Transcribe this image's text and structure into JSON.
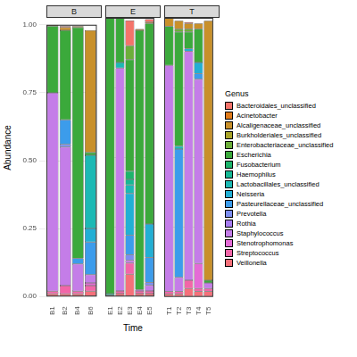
{
  "chart_data": [
    {
      "type": "bar",
      "title": "B",
      "stacked": true,
      "grid": true,
      "y_label": "Abundance",
      "categories": [
        "B1",
        "B2",
        "B4",
        "B6"
      ],
      "ylim": [
        0,
        1
      ],
      "yticks": [
        {
          "value": 0,
          "label": "0.00"
        },
        {
          "value": 0.25,
          "label": "0.25"
        },
        {
          "value": 0.5,
          "label": "0.50"
        },
        {
          "value": 0.75,
          "label": "0.75"
        },
        {
          "value": 1,
          "label": "1.00"
        }
      ],
      "series": [
        {
          "name": "Bacteroidales_unclassified",
          "color": "#f4736a",
          "values": [
            0,
            0.005,
            0,
            0
          ]
        },
        {
          "name": "Acinetobacter",
          "color": "#e07b1a",
          "values": [
            0,
            0,
            0,
            0
          ]
        },
        {
          "name": "Alcaligenaceae_unclassified",
          "color": "#c8902a",
          "values": [
            0.005,
            0.01,
            0.005,
            0.45
          ]
        },
        {
          "name": "Burkholderiales_unclassified",
          "color": "#a9a428",
          "values": [
            0,
            0,
            0,
            0
          ]
        },
        {
          "name": "Enterobacteriaceae_unclassified",
          "color": "#6dae3a",
          "values": [
            0,
            0,
            0,
            0
          ]
        },
        {
          "name": "Escherichia",
          "color": "#3ba93b",
          "values": [
            0.245,
            0.33,
            0.85,
            0.01
          ]
        },
        {
          "name": "Fusobacterium",
          "color": "#1db46b",
          "values": [
            0,
            0,
            0,
            0
          ]
        },
        {
          "name": "Haemophilus",
          "color": "#16b894",
          "values": [
            0,
            0,
            0,
            0
          ]
        },
        {
          "name": "Lactobacillales_unclassified",
          "color": "#1cb9b4",
          "values": [
            0,
            0,
            0,
            0.27
          ]
        },
        {
          "name": "Neisseria",
          "color": "#22afd4",
          "values": [
            0,
            0,
            0,
            0.05
          ]
        },
        {
          "name": "Pasteurellaceae_unclassified",
          "color": "#3c9ceb",
          "values": [
            0,
            0.09,
            0.02,
            0.12
          ]
        },
        {
          "name": "Prevotella",
          "color": "#7d8ef0",
          "values": [
            0,
            0.01,
            0,
            0
          ]
        },
        {
          "name": "Rothia",
          "color": "#a67cf0",
          "values": [
            0,
            0,
            0,
            0
          ]
        },
        {
          "name": "Staphylococcus",
          "color": "#c47de8",
          "values": [
            0.73,
            0.51,
            0.1,
            0.03
          ]
        },
        {
          "name": "Stenotrophomonas",
          "color": "#e46bd6",
          "values": [
            0,
            0,
            0,
            0.01
          ]
        },
        {
          "name": "Streptococcus",
          "color": "#f266a8",
          "values": [
            0.01,
            0.03,
            0.01,
            0.02
          ]
        },
        {
          "name": "Veillonella",
          "color": "#f5707a",
          "values": [
            0.01,
            0.01,
            0.01,
            0.02
          ]
        }
      ]
    },
    {
      "type": "bar",
      "title": "E",
      "stacked": true,
      "grid": true,
      "x_label": "Time",
      "tick_labels": "x",
      "categories": [
        "E1",
        "E2",
        "E3",
        "E4",
        "E5"
      ],
      "ylim": [
        0,
        1
      ],
      "yticks": [
        {
          "value": 0,
          "label": "0.00"
        },
        {
          "value": 0.25,
          "label": "0.25"
        },
        {
          "value": 0.5,
          "label": "0.50"
        },
        {
          "value": 0.75,
          "label": "0.75"
        },
        {
          "value": 1,
          "label": "1.00"
        }
      ],
      "series": [
        {
          "name": "Bacteroidales_unclassified",
          "color": "#f4736a",
          "values": [
            0,
            0,
            0.09,
            0,
            0.01
          ]
        },
        {
          "name": "Acinetobacter",
          "color": "#e07b1a",
          "values": [
            0,
            0,
            0,
            0,
            0
          ]
        },
        {
          "name": "Alcaligenaceae_unclassified",
          "color": "#c8902a",
          "values": [
            0,
            0,
            0,
            0.005,
            0.005
          ]
        },
        {
          "name": "Burkholderiales_unclassified",
          "color": "#a9a428",
          "values": [
            0,
            0,
            0,
            0,
            0
          ]
        },
        {
          "name": "Enterobacteriaceae_unclassified",
          "color": "#6dae3a",
          "values": [
            0,
            0,
            0.05,
            0,
            0
          ]
        },
        {
          "name": "Escherichia",
          "color": "#3ba93b",
          "values": [
            0.99,
            0.16,
            0.4,
            0.93,
            0.72
          ]
        },
        {
          "name": "Fusobacterium",
          "color": "#1db46b",
          "values": [
            0,
            0,
            0.03,
            0,
            0
          ]
        },
        {
          "name": "Haemophilus",
          "color": "#16b894",
          "values": [
            0.005,
            0,
            0.02,
            0,
            0
          ]
        },
        {
          "name": "Lactobacillales_unclassified",
          "color": "#1cb9b4",
          "values": [
            0,
            0.02,
            0.03,
            0,
            0
          ]
        },
        {
          "name": "Neisseria",
          "color": "#22afd4",
          "values": [
            0,
            0,
            0.15,
            0,
            0.12
          ]
        },
        {
          "name": "Pasteurellaceae_unclassified",
          "color": "#3c9ceb",
          "values": [
            0,
            0,
            0.07,
            0,
            0.09
          ]
        },
        {
          "name": "Prevotella",
          "color": "#7d8ef0",
          "values": [
            0,
            0,
            0.02,
            0,
            0.01
          ]
        },
        {
          "name": "Rothia",
          "color": "#a67cf0",
          "values": [
            0,
            0,
            0,
            0,
            0
          ]
        },
        {
          "name": "Staphylococcus",
          "color": "#c47de8",
          "values": [
            0,
            0.8,
            0.01,
            0.005,
            0.02
          ]
        },
        {
          "name": "Stenotrophomonas",
          "color": "#e46bd6",
          "values": [
            0,
            0,
            0,
            0,
            0
          ]
        },
        {
          "name": "Streptococcus",
          "color": "#f266a8",
          "values": [
            0,
            0.01,
            0.04,
            0.01,
            0.01
          ]
        },
        {
          "name": "Veillonella",
          "color": "#f5707a",
          "values": [
            0.005,
            0.01,
            0.08,
            0.01,
            0.01
          ]
        }
      ]
    },
    {
      "type": "bar",
      "title": "T",
      "stacked": true,
      "grid": true,
      "tick_labels": "x",
      "legend": "right",
      "legend_title": "Genus",
      "categories": [
        "T1",
        "T2",
        "T3",
        "T4",
        "T5"
      ],
      "ylim": [
        0,
        1
      ],
      "yticks": [
        {
          "value": 0,
          "label": "0.00"
        },
        {
          "value": 0.25,
          "label": "0.25"
        },
        {
          "value": 0.5,
          "label": "0.50"
        },
        {
          "value": 0.75,
          "label": "0.75"
        },
        {
          "value": 1,
          "label": "1.00"
        }
      ],
      "series": [
        {
          "name": "Bacteroidales_unclassified",
          "color": "#f4736a",
          "values": [
            0,
            0,
            0.005,
            0,
            0
          ]
        },
        {
          "name": "Acinetobacter",
          "color": "#e07b1a",
          "values": [
            0,
            0,
            0,
            0,
            0
          ]
        },
        {
          "name": "Alcaligenaceae_unclassified",
          "color": "#c8902a",
          "values": [
            0.03,
            0.03,
            0.02,
            0.02,
            0.93
          ]
        },
        {
          "name": "Burkholderiales_unclassified",
          "color": "#a9a428",
          "values": [
            0,
            0,
            0,
            0,
            0
          ]
        },
        {
          "name": "Enterobacteriaceae_unclassified",
          "color": "#6dae3a",
          "values": [
            0,
            0.01,
            0.01,
            0,
            0
          ]
        },
        {
          "name": "Escherichia",
          "color": "#3ba93b",
          "values": [
            0.14,
            0.41,
            0.06,
            0.12,
            0.01
          ]
        },
        {
          "name": "Fusobacterium",
          "color": "#1db46b",
          "values": [
            0,
            0,
            0,
            0,
            0
          ]
        },
        {
          "name": "Haemophilus",
          "color": "#16b894",
          "values": [
            0,
            0,
            0,
            0,
            0
          ]
        },
        {
          "name": "Lactobacillales_unclassified",
          "color": "#1cb9b4",
          "values": [
            0,
            0.01,
            0,
            0,
            0
          ]
        },
        {
          "name": "Neisseria",
          "color": "#22afd4",
          "values": [
            0,
            0,
            0.01,
            0.04,
            0
          ]
        },
        {
          "name": "Pasteurellaceae_unclassified",
          "color": "#3c9ceb",
          "values": [
            0,
            0.46,
            0,
            0.02,
            0
          ]
        },
        {
          "name": "Prevotella",
          "color": "#7d8ef0",
          "values": [
            0,
            0,
            0,
            0,
            0
          ]
        },
        {
          "name": "Rothia",
          "color": "#a67cf0",
          "values": [
            0,
            0,
            0,
            0,
            0
          ]
        },
        {
          "name": "Staphylococcus",
          "color": "#c47de8",
          "values": [
            0.81,
            0.05,
            0.82,
            0.66,
            0.02
          ]
        },
        {
          "name": "Stenotrophomonas",
          "color": "#e46bd6",
          "values": [
            0,
            0,
            0,
            0.09,
            0
          ]
        },
        {
          "name": "Streptococcus",
          "color": "#f266a8",
          "values": [
            0.01,
            0.01,
            0.03,
            0.01,
            0.01
          ]
        },
        {
          "name": "Veillonella",
          "color": "#f5707a",
          "values": [
            0.01,
            0.01,
            0.03,
            0.02,
            0.02
          ]
        }
      ]
    }
  ]
}
